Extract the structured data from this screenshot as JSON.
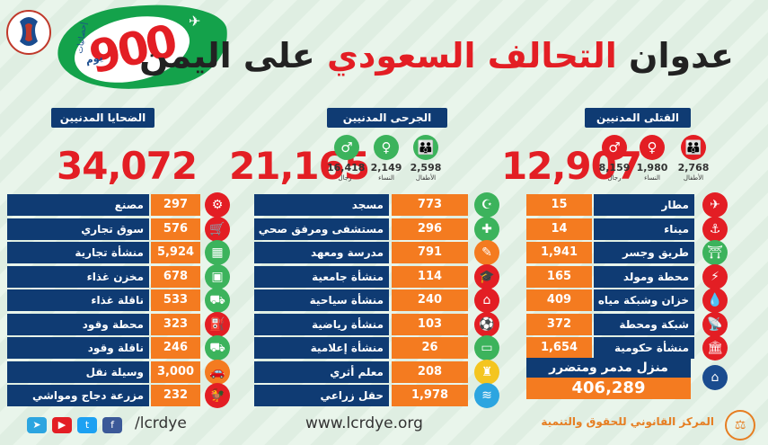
{
  "header": {
    "days_number": "900",
    "days_word": "يوم",
    "stats_word": "إحصائيات",
    "title_part1": "عدوان ",
    "title_part2": "التحالف السعودي",
    "title_part3": " على اليمن"
  },
  "killed": {
    "label": "القتلى المدنيين",
    "total": "12,907",
    "children": "2,768",
    "children_label": "الأطفال",
    "women": "1,980",
    "women_label": "النساء",
    "men": "8,159",
    "men_label": "رجال"
  },
  "wounded": {
    "label": "الجرحى المدنيين",
    "total": "21,165",
    "children": "2,598",
    "children_label": "الأطفال",
    "women": "2,149",
    "women_label": "النساء",
    "men": "16,418",
    "men_label": "رجال"
  },
  "victims": {
    "label": "الضحايا المدنيين",
    "total": "34,072"
  },
  "col_right": [
    {
      "label": "مطار",
      "value": "15",
      "icon": "plane-icon"
    },
    {
      "label": "ميناء",
      "value": "14",
      "icon": "anchor-icon"
    },
    {
      "label": "طريق وجسر",
      "value": "1,941",
      "icon": "bridge-icon"
    },
    {
      "label": "محطة ومولد كهرباء",
      "value": "165",
      "icon": "power-tower-icon"
    },
    {
      "label": "خزان وشبكة مياه",
      "value": "409",
      "icon": "water-tank-icon"
    },
    {
      "label": "شبكة ومحطة إتصالات",
      "value": "372",
      "icon": "satellite-dish-icon"
    },
    {
      "label": "منشأة حكومية",
      "value": "1,654",
      "icon": "government-building-icon"
    }
  ],
  "col_mid": [
    {
      "label": "مسجد",
      "value": "773",
      "icon": "mosque-icon"
    },
    {
      "label": "مستشفى ومرفق صحي",
      "value": "296",
      "icon": "hospital-icon"
    },
    {
      "label": "مدرسة ومعهد",
      "value": "791",
      "icon": "school-icon"
    },
    {
      "label": "منشأة جامعية",
      "value": "114",
      "icon": "graduation-cap-icon"
    },
    {
      "label": "منشأة سياحية",
      "value": "240",
      "icon": "hotel-icon"
    },
    {
      "label": "منشأة رياضية",
      "value": "103",
      "icon": "sports-ball-icon"
    },
    {
      "label": "منشأة إعلامية",
      "value": "26",
      "icon": "tv-icon"
    },
    {
      "label": "معلم أثري",
      "value": "208",
      "icon": "historic-building-icon"
    },
    {
      "label": "حقل زراعي",
      "value": "1,978",
      "icon": "field-icon"
    }
  ],
  "col_left": [
    {
      "label": "مصنع",
      "value": "297",
      "icon": "factory-icon"
    },
    {
      "label": "سوق تجاري",
      "value": "576",
      "icon": "market-icon"
    },
    {
      "label": "منشأة تجارية",
      "value": "5,924",
      "icon": "shop-icon"
    },
    {
      "label": "مخزن غذاء",
      "value": "678",
      "icon": "warehouse-icon"
    },
    {
      "label": "ناقلة غذاء",
      "value": "533",
      "icon": "truck-icon"
    },
    {
      "label": "محطة وقود",
      "value": "323",
      "icon": "fuel-pump-icon"
    },
    {
      "label": "ناقلة وقود",
      "value": "246",
      "icon": "tanker-icon"
    },
    {
      "label": "وسيلة نقل",
      "value": "3,000",
      "icon": "car-icon"
    },
    {
      "label": "مزرعة دجاج ومواشي",
      "value": "232",
      "icon": "rooster-icon"
    }
  ],
  "houses": {
    "label": "منزل مدمر ومتضرر",
    "value": "406,289",
    "icon": "house-icon"
  },
  "footer": {
    "handle": "/lcrdye",
    "url": "www.lcrdye.org",
    "org": "المركز القانوني للحقوق والتنمية"
  },
  "colors": {
    "navy": "#0f3b73",
    "orange": "#f47b20",
    "red": "#e31e24",
    "green": "#3cb35c"
  }
}
